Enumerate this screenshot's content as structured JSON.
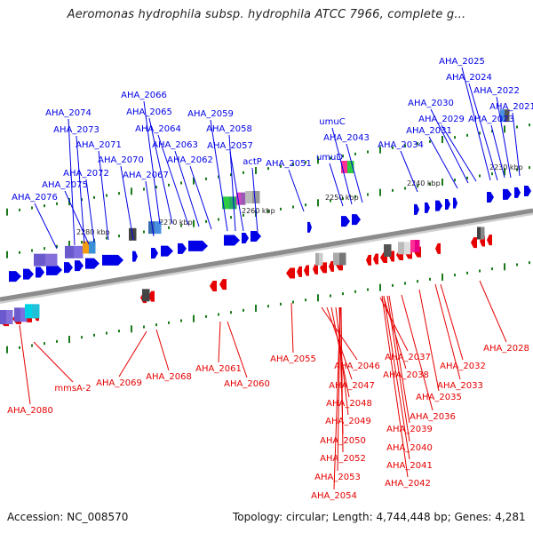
{
  "header": {
    "title": "Aeromonas hydrophila subsp. hydrophila ATCC 7966, complete g..."
  },
  "footer": {
    "accession": "Accession: NC_008570",
    "summary": "Topology: circular; Length: 4,744,448 bp; Genes: 4,281"
  },
  "colors": {
    "forward": "#0000e6",
    "reverse": "#e60000",
    "backbone": "#8c8c8c",
    "tick": "#1a7a1a"
  },
  "scale_labels": [
    "2230 kbp",
    "2240 kbp",
    "2250 kbp",
    "2260 kbp",
    "2270 kbp",
    "2280 kbp"
  ],
  "forward_labels": [
    "AHA_2025",
    "AHA_2024",
    "AHA_2022",
    "AHA_2021",
    "AHA_2023",
    "AHA_2030",
    "AHA_2029",
    "AHA_2031",
    "AHA_2034",
    "AHA_2043",
    "umuC",
    "umuD",
    "AHA_2066",
    "AHA_2065",
    "AHA_2064",
    "AHA_2063",
    "AHA_2062",
    "AHA_2059",
    "AHA_2058",
    "AHA_2057",
    "actP",
    "AHA_2051",
    "AHA_2074",
    "AHA_2073",
    "AHA_2071",
    "AHA_2072",
    "AHA_2070",
    "AHA_2067",
    "AHA_2075",
    "AHA_2076"
  ],
  "reverse_labels": [
    "AHA_2080",
    "mmsA-2",
    "AHA_2069",
    "AHA_2068",
    "AHA_2061",
    "AHA_2060",
    "AHA_2055",
    "AHA_2046",
    "AHA_2047",
    "AHA_2048",
    "AHA_2049",
    "AHA_2050",
    "AHA_2052",
    "AHA_2053",
    "AHA_2054",
    "AHA_2037",
    "AHA_2038",
    "AHA_2035",
    "AHA_2036",
    "AHA_2039",
    "AHA_2040",
    "AHA_2041",
    "AHA_2042",
    "AHA_2032",
    "AHA_2033",
    "AHA_2028"
  ]
}
